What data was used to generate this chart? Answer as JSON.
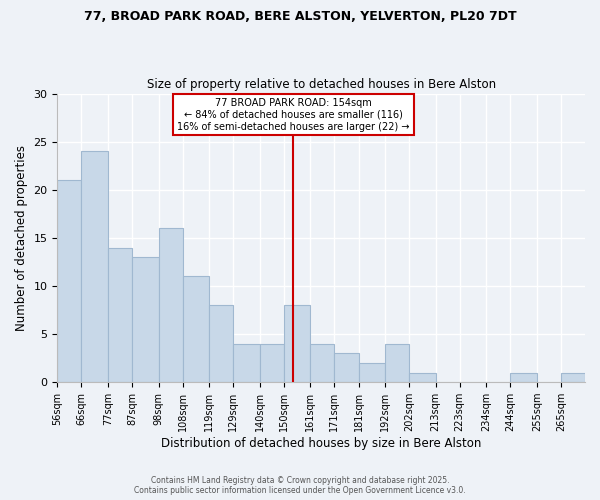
{
  "title1": "77, BROAD PARK ROAD, BERE ALSTON, YELVERTON, PL20 7DT",
  "title2": "Size of property relative to detached houses in Bere Alston",
  "xlabel": "Distribution of detached houses by size in Bere Alston",
  "ylabel": "Number of detached properties",
  "bin_labels": [
    "56sqm",
    "66sqm",
    "77sqm",
    "87sqm",
    "98sqm",
    "108sqm",
    "119sqm",
    "129sqm",
    "140sqm",
    "150sqm",
    "161sqm",
    "171sqm",
    "181sqm",
    "192sqm",
    "202sqm",
    "213sqm",
    "223sqm",
    "234sqm",
    "244sqm",
    "255sqm",
    "265sqm"
  ],
  "bin_edges": [
    56,
    66,
    77,
    87,
    98,
    108,
    119,
    129,
    140,
    150,
    161,
    171,
    181,
    192,
    202,
    213,
    223,
    234,
    244,
    255,
    265,
    275
  ],
  "counts": [
    21,
    24,
    14,
    13,
    16,
    11,
    8,
    4,
    4,
    8,
    4,
    3,
    2,
    4,
    1,
    0,
    0,
    0,
    1,
    0,
    1
  ],
  "bar_color": "#c8d8e8",
  "bar_edge_color": "#a0b8d0",
  "property_size": 154,
  "annotation_line1": "77 BROAD PARK ROAD: 154sqm",
  "annotation_line2": "← 84% of detached houses are smaller (116)",
  "annotation_line3": "16% of semi-detached houses are larger (22) →",
  "annotation_box_color": "#ffffff",
  "annotation_box_edge_color": "#cc0000",
  "vline_color": "#cc0000",
  "ylim": [
    0,
    30
  ],
  "footnote1": "Contains HM Land Registry data © Crown copyright and database right 2025.",
  "footnote2": "Contains public sector information licensed under the Open Government Licence v3.0.",
  "bg_color": "#eef2f7",
  "grid_color": "#ffffff"
}
